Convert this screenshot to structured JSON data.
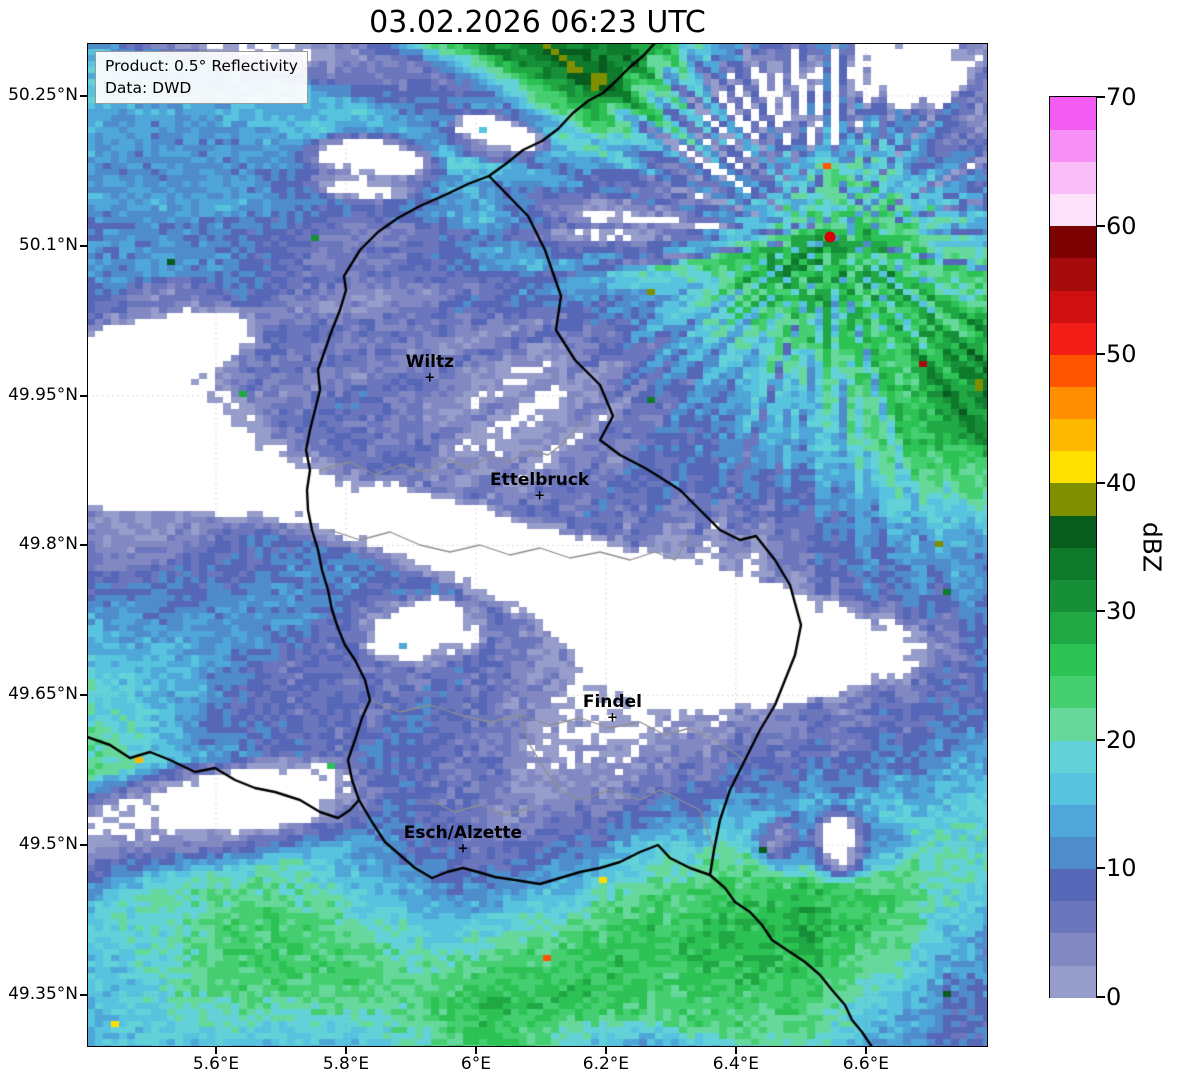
{
  "title": "03.02.2026 06:23 UTC",
  "info_box": {
    "product": "Product: 0.5° Reflectivity",
    "data_source": "Data: DWD"
  },
  "chart_data": {
    "type": "heatmap",
    "title": "03.02.2026 06:23 UTC",
    "colorbar_label": "dBZ",
    "colorbar": {
      "min": 0,
      "max": 70,
      "ticks": [
        {
          "value": 0,
          "label": "0"
        },
        {
          "value": 10,
          "label": "10"
        },
        {
          "value": 20,
          "label": "20"
        },
        {
          "value": 30,
          "label": "30"
        },
        {
          "value": 40,
          "label": "40"
        },
        {
          "value": 50,
          "label": "50"
        },
        {
          "value": 60,
          "label": "60"
        },
        {
          "value": 70,
          "label": "70"
        }
      ],
      "stops": [
        {
          "v": 0,
          "c": "#979dca"
        },
        {
          "v": 2.5,
          "c": "#8289c2"
        },
        {
          "v": 5,
          "c": "#6b76bd"
        },
        {
          "v": 7.5,
          "c": "#5667b8"
        },
        {
          "v": 10,
          "c": "#4f8ccc"
        },
        {
          "v": 12.5,
          "c": "#4fa6d8"
        },
        {
          "v": 15,
          "c": "#57c3de"
        },
        {
          "v": 17.5,
          "c": "#63d2d8"
        },
        {
          "v": 20,
          "c": "#67d89b"
        },
        {
          "v": 22.5,
          "c": "#46cf71"
        },
        {
          "v": 25,
          "c": "#2dc254"
        },
        {
          "v": 27.5,
          "c": "#1fa844"
        },
        {
          "v": 30,
          "c": "#168f38"
        },
        {
          "v": 32.5,
          "c": "#0e7a2c"
        },
        {
          "v": 35,
          "c": "#085c1e"
        },
        {
          "v": 37.5,
          "c": "#7e8f00"
        },
        {
          "v": 40,
          "c": "#ffe000"
        },
        {
          "v": 42.5,
          "c": "#ffb800"
        },
        {
          "v": 45,
          "c": "#ff8f00"
        },
        {
          "v": 47.5,
          "c": "#ff5500"
        },
        {
          "v": 50,
          "c": "#f31d17"
        },
        {
          "v": 52.5,
          "c": "#cf1010"
        },
        {
          "v": 55,
          "c": "#a60b0b"
        },
        {
          "v": 57.5,
          "c": "#7c0202"
        },
        {
          "v": 60,
          "c": "#fce1fb"
        },
        {
          "v": 62.5,
          "c": "#f9bdf8"
        },
        {
          "v": 65,
          "c": "#f790f6"
        },
        {
          "v": 67.5,
          "c": "#f35cf3"
        }
      ]
    },
    "x_axis": {
      "range": [
        5.4015,
        6.788
      ],
      "ticks": [
        {
          "value": 5.6,
          "label": "5.6°E"
        },
        {
          "value": 5.8,
          "label": "5.8°E"
        },
        {
          "value": 6.0,
          "label": "6°E"
        },
        {
          "value": 6.2,
          "label": "6.2°E"
        },
        {
          "value": 6.4,
          "label": "6.4°E"
        },
        {
          "value": 6.6,
          "label": "6.6°E"
        }
      ]
    },
    "y_axis": {
      "range": [
        49.298,
        50.303
      ],
      "ticks": [
        {
          "value": 50.25,
          "label": "50.25°N"
        },
        {
          "value": 50.1,
          "label": "50.1°N"
        },
        {
          "value": 49.95,
          "label": "49.95°N"
        },
        {
          "value": 49.8,
          "label": "49.8°N"
        },
        {
          "value": 49.65,
          "label": "49.65°N"
        },
        {
          "value": 49.5,
          "label": "49.5°N"
        },
        {
          "value": 49.35,
          "label": "49.35°N"
        }
      ]
    },
    "cities": [
      {
        "name": "Wiltz",
        "lon": 5.929,
        "lat": 49.968
      },
      {
        "name": "Ettelbruck",
        "lon": 6.098,
        "lat": 49.85
      },
      {
        "name": "Findel",
        "lon": 6.21,
        "lat": 49.627
      },
      {
        "name": "Esch/Alzette",
        "lon": 5.98,
        "lat": 49.496
      }
    ],
    "radar_site": {
      "lon": 6.545,
      "lat": 50.109,
      "marker_color": "#d60000"
    },
    "features": [
      "Widespread light precipitation (0-15 dBZ, blue shades) covering most of the domain",
      "Band of moderate rain (20-35 dBZ, greens) stretching northeast of Luxembourg toward the radar site",
      "Moderate rain band (20-30 dBZ) across the south and southwest of the domain",
      "Scattered echo-free (white) patches embedded in the light precipitation",
      "Radial spoke artifacts around the radar site near 6.55°E / 50.11°N"
    ]
  }
}
